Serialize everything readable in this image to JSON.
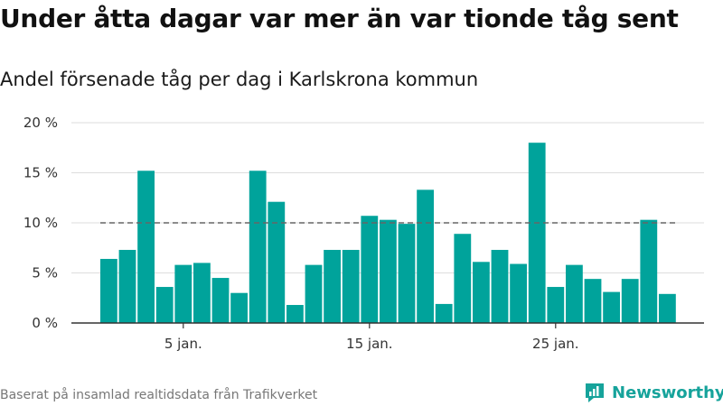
{
  "title": "Under åtta dagar var mer än var tionde tåg sent",
  "subtitle": "Andel försenade tåg per dag i Karlskrona kommun",
  "source": "Baserat på insamlad realtidsdata från Trafikverket",
  "brand": "Newsworthy",
  "colors": {
    "bar": "#00a39b",
    "reference_line": "#666666",
    "grid": "#dddddd",
    "brand": "#16a39b"
  },
  "chart_data": {
    "type": "bar",
    "categories": [
      "1 jan.",
      "2 jan.",
      "3 jan.",
      "4 jan.",
      "5 jan.",
      "6 jan.",
      "7 jan.",
      "8 jan.",
      "9 jan.",
      "10 jan.",
      "11 jan.",
      "12 jan.",
      "13 jan.",
      "14 jan.",
      "15 jan.",
      "16 jan.",
      "17 jan.",
      "18 jan.",
      "19 jan.",
      "20 jan.",
      "21 jan.",
      "22 jan.",
      "23 jan.",
      "24 jan.",
      "25 jan.",
      "26 jan.",
      "27 jan.",
      "28 jan.",
      "29 jan.",
      "30 jan.",
      "31 jan."
    ],
    "values": [
      6.4,
      7.3,
      15.2,
      3.6,
      5.8,
      6.0,
      4.5,
      3.0,
      15.2,
      12.1,
      1.8,
      5.8,
      7.3,
      7.3,
      10.7,
      10.3,
      9.9,
      13.3,
      1.9,
      8.9,
      6.1,
      7.3,
      5.9,
      18.0,
      3.6,
      5.8,
      4.4,
      3.1,
      4.4,
      10.3,
      2.9
    ],
    "reference_line": 10,
    "ylim": [
      0,
      20
    ],
    "yticks": [
      "0 %",
      "5 %",
      "10 %",
      "15 %",
      "20 %"
    ],
    "yticks_values": [
      0,
      5,
      10,
      15,
      20
    ],
    "xticks": [
      {
        "label": "5 jan.",
        "category": 4
      },
      {
        "label": "15 jan.",
        "category": 14
      },
      {
        "label": "25 jan.",
        "category": 24
      }
    ],
    "grid": true
  }
}
